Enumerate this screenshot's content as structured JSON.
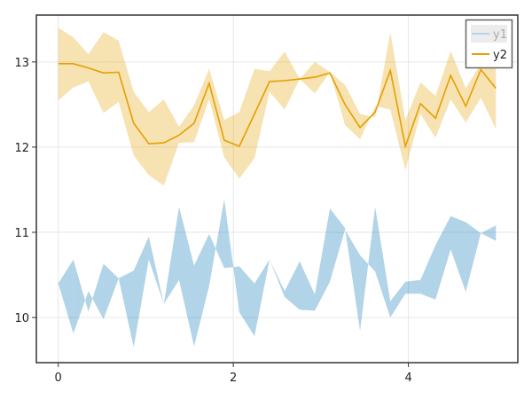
{
  "chart_data": {
    "type": "area",
    "title": "",
    "xlabel": "",
    "ylabel": "",
    "xlim": [
      -0.25,
      5.25
    ],
    "ylim": [
      9.47,
      13.55
    ],
    "grid": true,
    "x_ticks": [
      "0",
      "2",
      "4"
    ],
    "x_tick_values": [
      0,
      2,
      4
    ],
    "y_ticks": [
      "10",
      "11",
      "12",
      "13"
    ],
    "y_tick_values": [
      10,
      11,
      12,
      13
    ],
    "x_count": 30,
    "x_start": 0,
    "x_end": 5,
    "series": [
      {
        "name": "y1",
        "color": "#0072b2",
        "line_visible": false,
        "band_a": [
          10.4,
          10.68,
          10.07,
          10.63,
          10.46,
          10.55,
          10.95,
          10.16,
          11.3,
          10.61,
          10.98,
          10.58,
          10.6,
          10.4,
          10.68,
          10.31,
          10.66,
          10.27,
          11.28,
          11.05,
          9.84,
          11.3,
          10.19,
          10.42,
          10.44,
          10.85,
          11.19,
          11.12,
          10.99,
          11.08
        ],
        "band_b": [
          10.4,
          9.81,
          10.31,
          9.98,
          10.46,
          9.65,
          10.68,
          10.16,
          10.44,
          9.66,
          10.37,
          11.39,
          10.06,
          9.78,
          10.68,
          10.24,
          10.09,
          10.08,
          10.42,
          11.03,
          10.73,
          10.54,
          10.0,
          10.28,
          10.28,
          10.21,
          10.8,
          10.3,
          10.99,
          10.9
        ]
      },
      {
        "name": "y2",
        "color": "#e69f00",
        "line_visible": true,
        "values": [
          12.98,
          12.98,
          12.93,
          12.87,
          12.88,
          12.28,
          12.04,
          12.05,
          12.14,
          12.28,
          12.75,
          12.08,
          12.01,
          12.39,
          12.77,
          12.78,
          12.8,
          12.82,
          12.87,
          12.5,
          12.23,
          12.41,
          12.9,
          12.01,
          12.51,
          12.34,
          12.84,
          12.48,
          12.91,
          12.69
        ],
        "band_a": [
          13.4,
          13.29,
          13.09,
          13.35,
          13.25,
          12.65,
          12.41,
          12.56,
          12.24,
          12.49,
          12.92,
          12.32,
          12.41,
          12.92,
          12.89,
          13.12,
          12.8,
          13.0,
          12.88,
          12.73,
          12.39,
          12.35,
          13.35,
          12.32,
          12.76,
          12.6,
          13.13,
          12.69,
          12.98,
          13.02
        ],
        "band_b": [
          12.55,
          12.7,
          12.77,
          12.4,
          12.53,
          11.9,
          11.67,
          11.55,
          12.05,
          12.06,
          12.56,
          11.88,
          11.63,
          11.87,
          12.65,
          12.44,
          12.8,
          12.63,
          12.88,
          12.26,
          12.09,
          12.48,
          12.44,
          11.73,
          12.39,
          12.11,
          12.56,
          12.29,
          12.58,
          12.21
        ]
      }
    ],
    "legend": {
      "placement": "top-right",
      "entries": [
        {
          "label": "y1",
          "hidden": true
        },
        {
          "label": "y2",
          "hidden": false
        }
      ]
    }
  }
}
